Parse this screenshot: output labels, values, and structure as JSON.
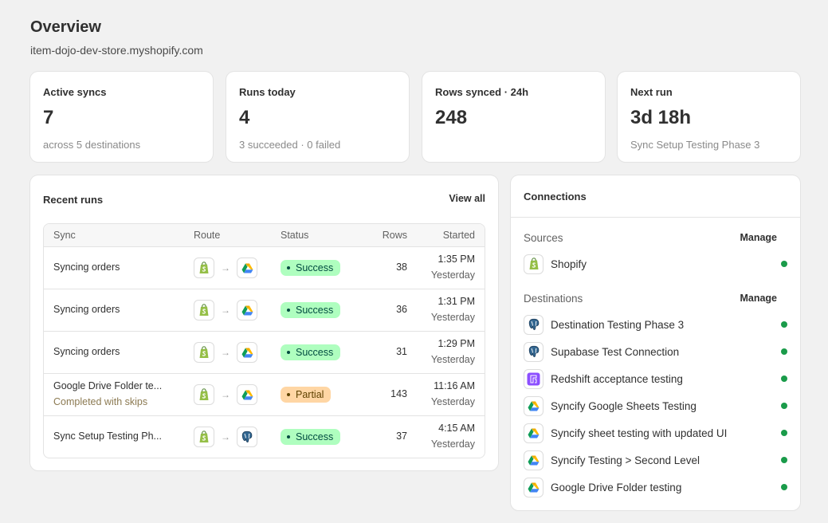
{
  "header": {
    "title": "Overview",
    "store": "item-dojo-dev-store.myshopify.com"
  },
  "stats": [
    {
      "label": "Active syncs",
      "value": "7",
      "sub": "across 5 destinations"
    },
    {
      "label": "Runs today",
      "value": "4",
      "sub": "3 succeeded · 0 failed"
    },
    {
      "label": "Rows synced · 24h",
      "value": "248",
      "sub": ""
    },
    {
      "label": "Next run",
      "value": "3d 18h",
      "sub": "Sync Setup Testing Phase 3"
    }
  ],
  "recent_runs": {
    "title": "Recent runs",
    "view_all": "View all",
    "columns": {
      "sync": "Sync",
      "route": "Route",
      "status": "Status",
      "rows": "Rows",
      "started": "Started"
    },
    "rows": [
      {
        "sync": "Syncing orders",
        "note": "",
        "from_icon": "shopify-icon",
        "to_icon": "google-drive-icon",
        "status": "Success",
        "status_kind": "success",
        "rows": "38",
        "time": "1:35 PM",
        "day": "Yesterday"
      },
      {
        "sync": "Syncing orders",
        "note": "",
        "from_icon": "shopify-icon",
        "to_icon": "google-drive-icon",
        "status": "Success",
        "status_kind": "success",
        "rows": "36",
        "time": "1:31 PM",
        "day": "Yesterday"
      },
      {
        "sync": "Syncing orders",
        "note": "",
        "from_icon": "shopify-icon",
        "to_icon": "google-drive-icon",
        "status": "Success",
        "status_kind": "success",
        "rows": "31",
        "time": "1:29 PM",
        "day": "Yesterday"
      },
      {
        "sync": "Google Drive Folder te...",
        "note": "Completed with skips",
        "from_icon": "shopify-icon",
        "to_icon": "google-drive-icon",
        "status": "Partial",
        "status_kind": "partial",
        "rows": "143",
        "time": "11:16 AM",
        "day": "Yesterday"
      },
      {
        "sync": "Sync Setup Testing Ph...",
        "note": "",
        "from_icon": "shopify-icon",
        "to_icon": "postgres-icon",
        "status": "Success",
        "status_kind": "success",
        "rows": "37",
        "time": "4:15 AM",
        "day": "Yesterday"
      }
    ]
  },
  "connections": {
    "title": "Connections",
    "sources_label": "Sources",
    "destinations_label": "Destinations",
    "manage_label": "Manage",
    "sources": [
      {
        "name": "Shopify",
        "icon": "shopify-icon",
        "status": "connected"
      }
    ],
    "destinations": [
      {
        "name": "Destination Testing Phase 3",
        "icon": "postgres-icon",
        "status": "connected"
      },
      {
        "name": "Supabase Test Connection",
        "icon": "postgres-icon",
        "status": "connected"
      },
      {
        "name": "Redshift acceptance testing",
        "icon": "redshift-icon",
        "status": "connected"
      },
      {
        "name": "Syncify Google Sheets Testing",
        "icon": "google-drive-icon",
        "status": "connected"
      },
      {
        "name": "Syncify sheet testing with updated UI",
        "icon": "google-drive-icon",
        "status": "connected"
      },
      {
        "name": "Syncify Testing > Second Level",
        "icon": "google-drive-icon",
        "status": "connected"
      },
      {
        "name": "Google Drive Folder testing",
        "icon": "google-drive-icon",
        "status": "connected"
      }
    ]
  },
  "colors": {
    "connected": "#1a9b4a",
    "success_bg": "#affebf",
    "partial_bg": "#ffd6a4"
  }
}
